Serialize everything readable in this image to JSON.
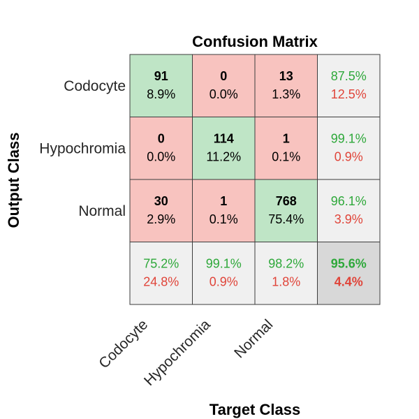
{
  "chart_data": {
    "type": "heatmap",
    "title": "Confusion Matrix",
    "xlabel": "Target Class",
    "ylabel": "Output Class",
    "classes": [
      "Codocyte",
      "Hypochromia",
      "Normal"
    ],
    "counts": [
      [
        91,
        0,
        13
      ],
      [
        0,
        114,
        1
      ],
      [
        30,
        1,
        768
      ]
    ],
    "cell_percent": [
      [
        "8.9%",
        "0.0%",
        "1.3%"
      ],
      [
        "0.0%",
        "11.2%",
        "0.1%"
      ],
      [
        "2.9%",
        "0.1%",
        "75.4%"
      ]
    ],
    "row_summary": [
      {
        "correct": "87.5%",
        "error": "12.5%"
      },
      {
        "correct": "99.1%",
        "error": "0.9%"
      },
      {
        "correct": "96.1%",
        "error": "3.9%"
      }
    ],
    "column_summary": [
      {
        "correct": "75.2%",
        "error": "24.8%"
      },
      {
        "correct": "99.1%",
        "error": "0.9%"
      },
      {
        "correct": "98.2%",
        "error": "1.8%"
      }
    ],
    "overall": {
      "correct": "95.6%",
      "error": "4.4%"
    },
    "colors": {
      "diagonal": "#bfe5c6",
      "off_diagonal": "#f8c3bf",
      "summary": "#f0f0f0",
      "overall": "#d8d8d8",
      "correct_text": "#2ea83a",
      "error_text": "#e0453a",
      "text": "#000000",
      "grid": "#3c3c3c"
    }
  }
}
